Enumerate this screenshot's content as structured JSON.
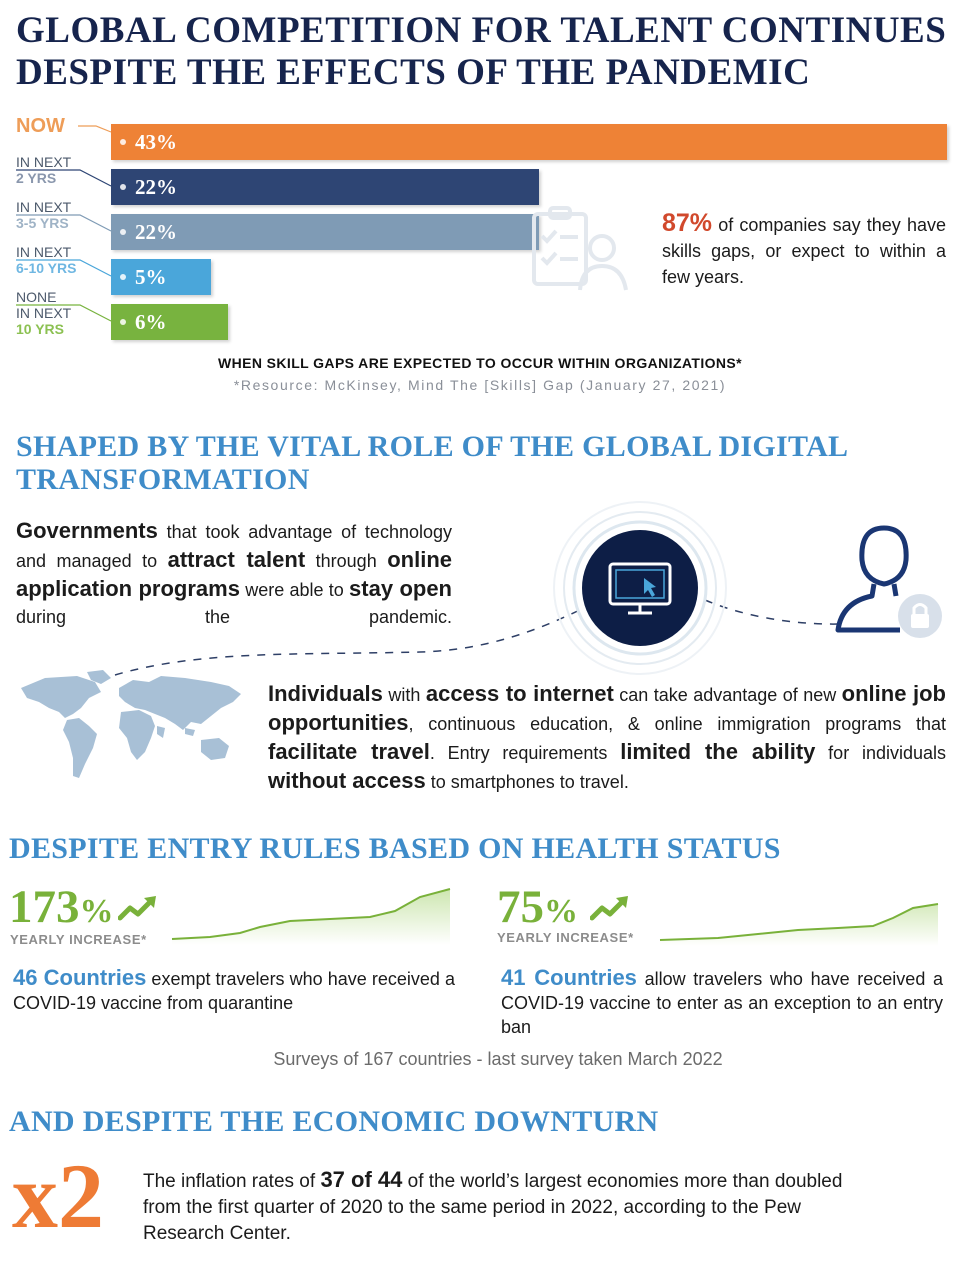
{
  "title": {
    "line1": "GLOBAL COMPETITION FOR TALENT CONTINUES",
    "line2": "DESPITE THE EFFECTS OF THE PANDEMIC"
  },
  "chart_data": {
    "type": "bar",
    "orientation": "horizontal",
    "title": "WHEN SKILL GAPS ARE EXPECTED TO OCCUR WITHIN ORGANIZATIONS*",
    "categories": [
      "NOW",
      "IN NEXT 2 YRS",
      "IN NEXT 3-5 YRS",
      "IN NEXT 6-10 YRS",
      "NONE IN NEXT 10 YRS"
    ],
    "values": [
      43,
      22,
      22,
      5,
      6
    ],
    "value_labels": [
      "43%",
      "22%",
      "22%",
      "5%",
      "6%"
    ],
    "colors": [
      "#ee8236",
      "#2e4574",
      "#7f9bb5",
      "#4aa6da",
      "#78b33f"
    ],
    "legend": false,
    "grid": false
  },
  "bar_labels": [
    {
      "l1": "NOW",
      "l2": "",
      "l3": "",
      "color": "#ee9d58"
    },
    {
      "l1": "IN NEXT",
      "l2": "2 YRS",
      "l3": "",
      "color": "#2e4574"
    },
    {
      "l1": "IN NEXT",
      "l2": "3-5 YRS",
      "l3": "",
      "color": "#7f9bb5"
    },
    {
      "l1": "IN NEXT",
      "l2": "6-10 YRS",
      "l3": "",
      "color": "#4aa6da"
    },
    {
      "l1": "NONE",
      "l2": "IN NEXT",
      "l3": "10 YRS",
      "color": "#78b33f"
    }
  ],
  "stat87": {
    "pct": "87%",
    "text": " of companies say they have skills gaps, or expect to within a few years."
  },
  "chart_caption": "WHEN SKILL GAPS ARE EXPECTED TO OCCUR WITHIN ORGANIZATIONS*",
  "chart_source": "*Resource: McKinsey, Mind The [Skills] Gap (January 27, 2021)",
  "section2": {
    "title_l1": "SHAPED BY THE VITAL ROLE OF THE GLOBAL DIGITAL",
    "title_l2": "TRANSFORMATION",
    "p1": {
      "a": "Governments",
      "b": " that took advantage of technology and managed to ",
      "c": "attract talent",
      "d": " through ",
      "e": "online application programs",
      "f": " were able to ",
      "g": "stay open",
      "h": " during the pandemic."
    },
    "p2": {
      "a": "Individuals",
      "b": " with ",
      "c": "access to internet",
      "d": " can take advantage of new ",
      "e": "online job opportunities",
      "f": ", continuous education, & online immigration programs that ",
      "g": "facilitate travel",
      "h": ". Entry requirements ",
      "i": "limited the ability",
      "j": " for individuals ",
      "k": "without access",
      "l": " to smartphones to travel."
    }
  },
  "section3": {
    "title": "DESPITE ENTRY RULES BASED ON HEALTH STATUS",
    "left": {
      "pct": "173",
      "pct_sign": "%",
      "yearly": "YEARLY INCREASE*",
      "highlight": "46 Countries",
      "text": " exempt travelers who have received a COVID-19 vaccine from quarantine"
    },
    "right": {
      "pct": "75",
      "pct_sign": "%",
      "yearly": "YEARLY INCREASE*",
      "highlight": "41 Countries",
      "text": " allow travelers who have received a COVID-19 vaccine to enter as an exception to an entry ban"
    },
    "survey": "Surveys of 167 countries - last survey taken March 2022"
  },
  "section4": {
    "title": "AND DESPITE THE ECONOMIC DOWNTURN",
    "big": "x2",
    "t1": "The inflation rates of ",
    "t2": "37 of 44",
    "t3": " of the world’s largest economies more than doubled from the first quarter of 2020 to the same period in 2022, according to the Pew Research Center."
  },
  "icons": [
    "checklist-person-icon",
    "computer-cursor-icon",
    "user-lock-icon",
    "world-map-icon",
    "trend-up-arrow-icon"
  ]
}
